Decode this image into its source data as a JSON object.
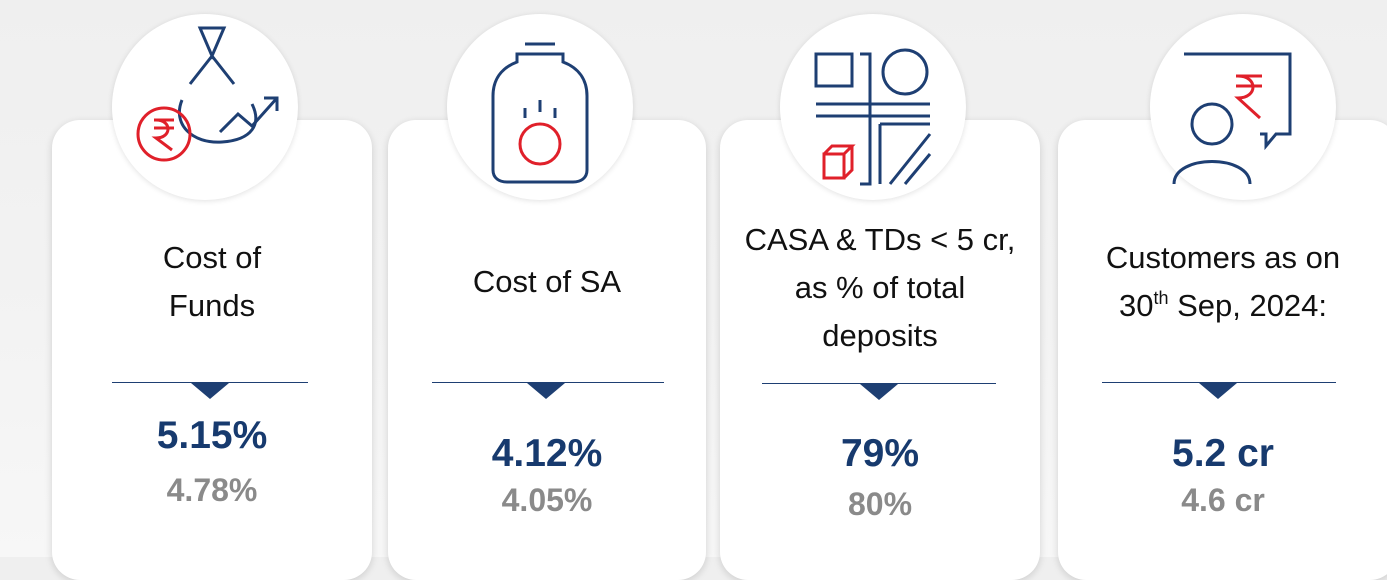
{
  "cards": [
    {
      "label_lines": [
        "Cost of",
        "Funds"
      ],
      "current": "5.15%",
      "previous": "4.78%"
    },
    {
      "label_lines": [
        "Cost of SA"
      ],
      "current": "4.12%",
      "previous": "4.05%"
    },
    {
      "label_lines": [
        "CASA & TDs < 5 cr,",
        "as % of total",
        "deposits"
      ],
      "current": "79%",
      "previous": "80%"
    },
    {
      "label_lines": [
        "Customers as on"
      ],
      "date": {
        "day": "30",
        "suffix": "th",
        "rest": " Sep, 2024:"
      },
      "current": "5.2 cr",
      "previous": "4.6 cr"
    }
  ]
}
